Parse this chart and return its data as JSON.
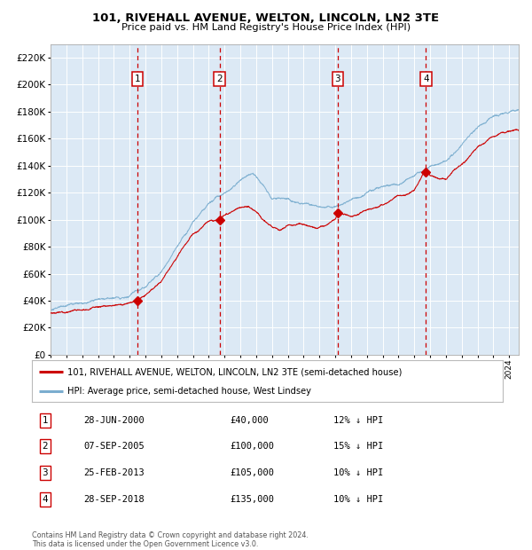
{
  "title": "101, RIVEHALL AVENUE, WELTON, LINCOLN, LN2 3TE",
  "subtitle": "Price paid vs. HM Land Registry's House Price Index (HPI)",
  "legend_house": "101, RIVEHALL AVENUE, WELTON, LINCOLN, LN2 3TE (semi-detached house)",
  "legend_hpi": "HPI: Average price, semi-detached house, West Lindsey",
  "footer": "Contains HM Land Registry data © Crown copyright and database right 2024.\nThis data is licensed under the Open Government Licence v3.0.",
  "purchases": [
    {
      "num": 1,
      "date": "28-JUN-2000",
      "price": 40000,
      "pct": "12% ↓ HPI",
      "year": 2000.49
    },
    {
      "num": 2,
      "date": "07-SEP-2005",
      "price": 100000,
      "pct": "15% ↓ HPI",
      "year": 2005.68
    },
    {
      "num": 3,
      "date": "25-FEB-2013",
      "price": 105000,
      "pct": "10% ↓ HPI",
      "year": 2013.15
    },
    {
      "num": 4,
      "date": "28-SEP-2018",
      "price": 135000,
      "pct": "10% ↓ HPI",
      "year": 2018.74
    }
  ],
  "ylim": [
    0,
    230000
  ],
  "xlim_start": 1995.0,
  "xlim_end": 2024.6,
  "fig_bg": "#ffffff",
  "plot_bg": "#dce9f5",
  "grid_color": "#ffffff",
  "red_line_color": "#cc0000",
  "blue_line_color": "#7aadcf",
  "vline_color": "#cc0000",
  "box_edge_color": "#cc0000",
  "marker_color": "#cc0000",
  "hpi_waypoints": [
    [
      1995.0,
      33000
    ],
    [
      1996.0,
      35500
    ],
    [
      1997.0,
      37000
    ],
    [
      1998.0,
      38500
    ],
    [
      1999.0,
      40000
    ],
    [
      2000.0,
      42000
    ],
    [
      2001.0,
      48000
    ],
    [
      2002.0,
      62000
    ],
    [
      2003.0,
      82000
    ],
    [
      2004.0,
      100000
    ],
    [
      2005.0,
      112000
    ],
    [
      2006.0,
      120000
    ],
    [
      2007.0,
      130000
    ],
    [
      2007.8,
      133000
    ],
    [
      2008.5,
      124000
    ],
    [
      2009.0,
      116000
    ],
    [
      2010.0,
      118000
    ],
    [
      2011.0,
      116000
    ],
    [
      2012.0,
      113000
    ],
    [
      2013.0,
      115000
    ],
    [
      2014.0,
      119000
    ],
    [
      2015.0,
      124000
    ],
    [
      2016.0,
      129000
    ],
    [
      2017.0,
      133000
    ],
    [
      2018.0,
      139000
    ],
    [
      2019.0,
      145000
    ],
    [
      2020.0,
      150000
    ],
    [
      2021.0,
      162000
    ],
    [
      2022.0,
      175000
    ],
    [
      2023.0,
      183000
    ],
    [
      2024.0,
      188000
    ],
    [
      2024.5,
      189000
    ]
  ],
  "red_waypoints": [
    [
      1995.0,
      31000
    ],
    [
      1996.0,
      32000
    ],
    [
      1997.0,
      33000
    ],
    [
      1998.0,
      34000
    ],
    [
      1999.0,
      36000
    ],
    [
      2000.0,
      37500
    ],
    [
      2000.49,
      40000
    ],
    [
      2001.0,
      44000
    ],
    [
      2002.0,
      56000
    ],
    [
      2003.0,
      73000
    ],
    [
      2004.0,
      90000
    ],
    [
      2005.0,
      99000
    ],
    [
      2005.68,
      100000
    ],
    [
      2006.0,
      104000
    ],
    [
      2007.0,
      110000
    ],
    [
      2007.5,
      112000
    ],
    [
      2008.0,
      106000
    ],
    [
      2008.5,
      100000
    ],
    [
      2009.0,
      95000
    ],
    [
      2009.5,
      93000
    ],
    [
      2010.0,
      96000
    ],
    [
      2011.0,
      97000
    ],
    [
      2012.0,
      95000
    ],
    [
      2012.5,
      96000
    ],
    [
      2013.0,
      100000
    ],
    [
      2013.15,
      105000
    ],
    [
      2014.0,
      102000
    ],
    [
      2015.0,
      105000
    ],
    [
      2016.0,
      108000
    ],
    [
      2017.0,
      113000
    ],
    [
      2018.0,
      118000
    ],
    [
      2018.74,
      135000
    ],
    [
      2019.0,
      130000
    ],
    [
      2020.0,
      127000
    ],
    [
      2021.0,
      140000
    ],
    [
      2022.0,
      153000
    ],
    [
      2023.0,
      161000
    ],
    [
      2024.0,
      164000
    ],
    [
      2024.5,
      165000
    ]
  ]
}
